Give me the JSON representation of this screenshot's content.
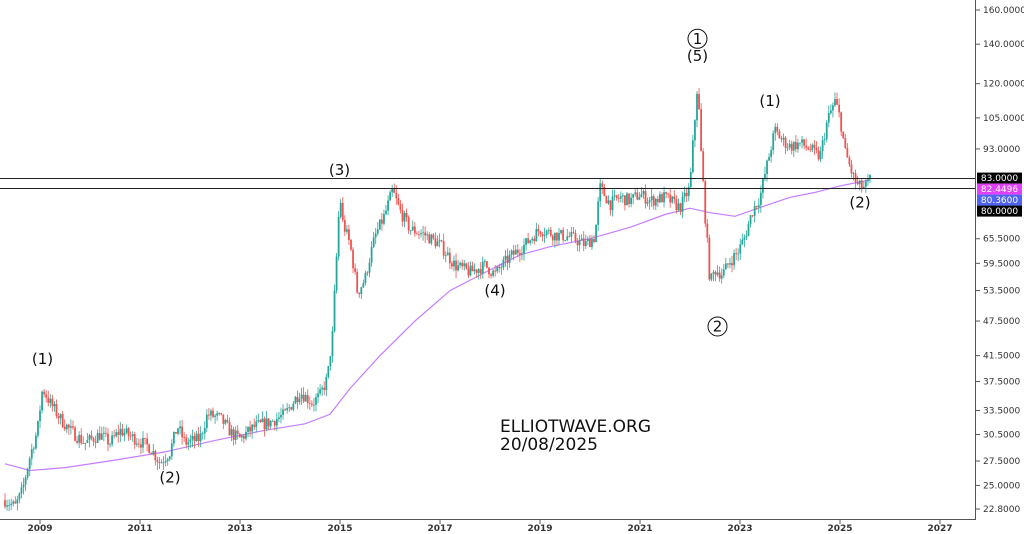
{
  "chart_data": {
    "type": "candlestick",
    "ylim": [
      22.8,
      160
    ],
    "y_scale": "log",
    "xlim": [
      2008.3,
      2027.6
    ],
    "y_ticks": [
      "160.0000",
      "140.0000",
      "120.0000",
      "105.0000",
      "93.0000",
      "65.5000",
      "59.5000",
      "53.5000",
      "47.5000",
      "41.5000",
      "37.5000",
      "33.5000",
      "30.5000",
      "27.5000",
      "25.0000",
      "22.8000"
    ],
    "x_ticks": [
      "2009",
      "2011",
      "2013",
      "2015",
      "2017",
      "2019",
      "2021",
      "2023",
      "2025",
      "2027"
    ],
    "price_tags": [
      {
        "label": "83.0000",
        "value": 83.0,
        "bg": "#000000",
        "fg": "#ffffff"
      },
      {
        "label": "82.4496",
        "value": 82.4496,
        "bg": "#e040fb",
        "fg": "#ffffff"
      },
      {
        "label": "80.3600",
        "value": 80.36,
        "bg": "#4e63f5",
        "fg": "#ffffff"
      },
      {
        "label": "80.0000",
        "value": 80.0,
        "bg": "#000000",
        "fg": "#ffffff"
      }
    ],
    "horizontal_lines": [
      83.0,
      80.0
    ],
    "price_path": [
      [
        2008.3,
        23.6
      ],
      [
        2008.5,
        23.0
      ],
      [
        2008.65,
        24.5
      ],
      [
        2008.8,
        28.0
      ],
      [
        2008.95,
        31.0
      ],
      [
        2009.05,
        36.5
      ],
      [
        2009.2,
        34.5
      ],
      [
        2009.4,
        32.5
      ],
      [
        2009.6,
        31.0
      ],
      [
        2009.9,
        29.5
      ],
      [
        2010.2,
        30.5
      ],
      [
        2010.4,
        29.5
      ],
      [
        2010.6,
        31.0
      ],
      [
        2010.9,
        30.0
      ],
      [
        2011.2,
        29.0
      ],
      [
        2011.4,
        27.3
      ],
      [
        2011.6,
        28.5
      ],
      [
        2011.75,
        31.5
      ],
      [
        2011.9,
        29.5
      ],
      [
        2012.2,
        30.0
      ],
      [
        2012.35,
        33.0
      ],
      [
        2012.6,
        32.5
      ],
      [
        2012.85,
        30.5
      ],
      [
        2013.0,
        30.0
      ],
      [
        2013.3,
        31.5
      ],
      [
        2013.6,
        32.0
      ],
      [
        2013.9,
        33.0
      ],
      [
        2014.2,
        36.0
      ],
      [
        2014.45,
        34.5
      ],
      [
        2014.6,
        35.5
      ],
      [
        2014.75,
        38.0
      ],
      [
        2014.85,
        45.0
      ],
      [
        2014.92,
        58.0
      ],
      [
        2015.0,
        78.0
      ],
      [
        2015.05,
        70.0
      ],
      [
        2015.2,
        64.0
      ],
      [
        2015.35,
        53.0
      ],
      [
        2015.5,
        56.0
      ],
      [
        2015.7,
        66.0
      ],
      [
        2015.9,
        72.0
      ],
      [
        2016.05,
        79.0
      ],
      [
        2016.2,
        73.0
      ],
      [
        2016.4,
        68.0
      ],
      [
        2016.7,
        66.5
      ],
      [
        2017.0,
        64.0
      ],
      [
        2017.3,
        59.0
      ],
      [
        2017.6,
        57.5
      ],
      [
        2017.9,
        59.0
      ],
      [
        2018.1,
        57.0
      ],
      [
        2018.2,
        58.5
      ],
      [
        2018.4,
        61.0
      ],
      [
        2018.7,
        64.0
      ],
      [
        2019.0,
        68.0
      ],
      [
        2019.3,
        66.5
      ],
      [
        2019.6,
        66.0
      ],
      [
        2019.9,
        64.0
      ],
      [
        2020.1,
        66.0
      ],
      [
        2020.2,
        80.0
      ],
      [
        2020.4,
        75.0
      ],
      [
        2020.6,
        77.0
      ],
      [
        2020.8,
        76.0
      ],
      [
        2021.0,
        78.0
      ],
      [
        2021.2,
        76.0
      ],
      [
        2021.5,
        77.0
      ],
      [
        2021.8,
        74.0
      ],
      [
        2022.0,
        80.0
      ],
      [
        2022.1,
        105.0
      ],
      [
        2022.15,
        120.0
      ],
      [
        2022.22,
        92.0
      ],
      [
        2022.3,
        72.0
      ],
      [
        2022.4,
        55.0
      ],
      [
        2022.5,
        58.0
      ],
      [
        2022.65,
        57.0
      ],
      [
        2022.8,
        60.0
      ],
      [
        2022.95,
        62.0
      ],
      [
        2023.1,
        66.0
      ],
      [
        2023.25,
        73.0
      ],
      [
        2023.4,
        77.0
      ],
      [
        2023.55,
        88.0
      ],
      [
        2023.7,
        100.0
      ],
      [
        2023.85,
        96.0
      ],
      [
        2024.0,
        94.0
      ],
      [
        2024.2,
        95.0
      ],
      [
        2024.4,
        93.0
      ],
      [
        2024.6,
        90.0
      ],
      [
        2024.75,
        104.0
      ],
      [
        2024.9,
        112.0
      ],
      [
        2025.0,
        105.0
      ],
      [
        2025.1,
        92.0
      ],
      [
        2025.25,
        84.0
      ],
      [
        2025.35,
        80.5
      ],
      [
        2025.5,
        80.0
      ],
      [
        2025.6,
        82.4
      ]
    ],
    "moving_average": [
      [
        2008.3,
        27.2
      ],
      [
        2008.8,
        26.5
      ],
      [
        2009.5,
        26.8
      ],
      [
        2010.5,
        27.6
      ],
      [
        2011.5,
        28.5
      ],
      [
        2012.5,
        29.8
      ],
      [
        2013.5,
        31.0
      ],
      [
        2014.3,
        31.8
      ],
      [
        2014.8,
        33.0
      ],
      [
        2015.2,
        36.5
      ],
      [
        2015.8,
        41.5
      ],
      [
        2016.5,
        47.5
      ],
      [
        2017.2,
        53.5
      ],
      [
        2018.0,
        58.0
      ],
      [
        2018.6,
        61.5
      ],
      [
        2019.2,
        63.5
      ],
      [
        2020.0,
        65.5
      ],
      [
        2020.8,
        68.5
      ],
      [
        2021.5,
        72.0
      ],
      [
        2022.0,
        73.8
      ],
      [
        2022.4,
        72.5
      ],
      [
        2022.9,
        71.5
      ],
      [
        2023.5,
        74.5
      ],
      [
        2024.0,
        77.0
      ],
      [
        2024.5,
        78.5
      ],
      [
        2025.0,
        80.5
      ],
      [
        2025.6,
        82.4
      ]
    ],
    "wave_labels": [
      {
        "text": "(1)",
        "x": 2009.05,
        "y": 40.2
      },
      {
        "text": "(2)",
        "x": 2011.6,
        "y": 25.3
      },
      {
        "text": "(3)",
        "x": 2014.99,
        "y": 84.0
      },
      {
        "text": "(4)",
        "x": 2018.1,
        "y": 52.5
      },
      {
        "text": "(5)",
        "x": 2022.15,
        "y": 131.0
      },
      {
        "text": "(1)",
        "x": 2023.6,
        "y": 110.0
      },
      {
        "text": "(2)",
        "x": 2025.4,
        "y": 74.0
      }
    ],
    "circled_labels": [
      {
        "text": "1",
        "x": 2022.15,
        "y": 143.0
      },
      {
        "text": "2",
        "x": 2022.55,
        "y": 46.5
      }
    ],
    "watermark": [
      "ELLIOTWAVE.ORG",
      "20/08/2025"
    ],
    "colors": {
      "up": "#26a69a",
      "down": "#ef5350",
      "ma": "#c77dff",
      "axis": "#333333"
    }
  }
}
